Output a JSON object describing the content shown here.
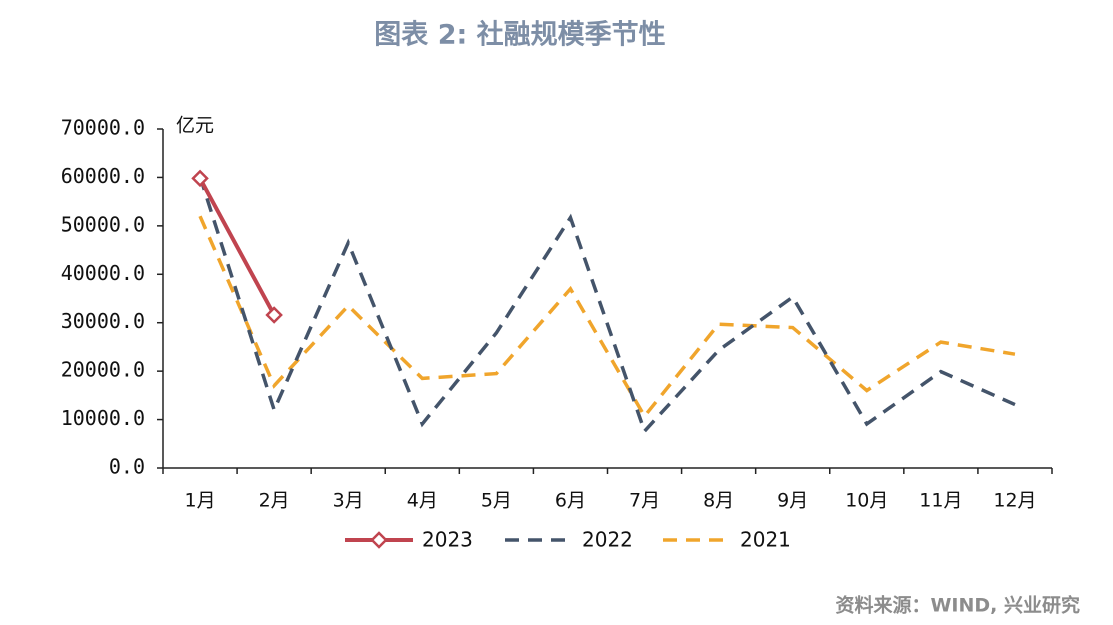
{
  "chart_data": {
    "type": "line",
    "title": "图表 2:  社融规模季节性",
    "y_label": "亿元",
    "source": "资料来源：WIND, 兴业研究",
    "categories": [
      "1月",
      "2月",
      "3月",
      "4月",
      "5月",
      "6月",
      "7月",
      "8月",
      "9月",
      "10月",
      "11月",
      "12月"
    ],
    "series": [
      {
        "name": "2023",
        "color": "#c0444f",
        "dash": false,
        "marker": "diamond",
        "values": [
          59800,
          31600,
          null,
          null,
          null,
          null,
          null,
          null,
          null,
          null,
          null,
          null
        ]
      },
      {
        "name": "2022",
        "color": "#44546a",
        "dash": true,
        "values": [
          60200,
          12000,
          46500,
          9100,
          27900,
          51700,
          7600,
          24300,
          35300,
          9100,
          19900,
          13100
        ]
      },
      {
        "name": "2021",
        "color": "#f0a52c",
        "dash": true,
        "values": [
          52000,
          17000,
          33500,
          18500,
          19500,
          37000,
          10700,
          29700,
          29000,
          16000,
          26000,
          23500
        ]
      }
    ],
    "ylim": [
      0,
      70000
    ],
    "yticks": [
      {
        "value": 0,
        "label": "0.0"
      },
      {
        "value": 10000,
        "label": "10000.0"
      },
      {
        "value": 20000,
        "label": "20000.0"
      },
      {
        "value": 30000,
        "label": "30000.0"
      },
      {
        "value": 40000,
        "label": "40000.0"
      },
      {
        "value": 50000,
        "label": "50000.0"
      },
      {
        "value": 60000,
        "label": "60000.0"
      },
      {
        "value": 70000,
        "label": "70000.0"
      }
    ],
    "legend": "bottom"
  }
}
